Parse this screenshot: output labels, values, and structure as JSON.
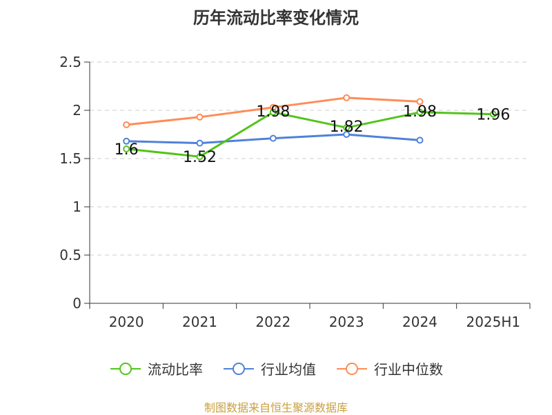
{
  "chart_data": {
    "type": "line",
    "title": "历年流动比率变化情况",
    "categories": [
      "2020",
      "2021",
      "2022",
      "2023",
      "2024",
      "2025H1"
    ],
    "ylim": [
      0,
      2.5
    ],
    "yticks": [
      "0",
      "0.5",
      "1",
      "1.5",
      "2",
      "2.5"
    ],
    "ytick_values": [
      0,
      0.5,
      1,
      1.5,
      2,
      2.5
    ],
    "grid": true,
    "legend_position": "bottom",
    "series": [
      {
        "name": "流动比率",
        "color": "#52c41a",
        "values": [
          1.6,
          1.52,
          1.98,
          1.82,
          1.98,
          1.96
        ],
        "labels": [
          "1.6",
          "1.52",
          "1.98",
          "1.82",
          "1.98",
          "1.96"
        ]
      },
      {
        "name": "行业均值",
        "color": "#4f81d9",
        "values": [
          1.68,
          1.66,
          1.71,
          1.75,
          1.69,
          null
        ]
      },
      {
        "name": "行业中位数",
        "color": "#ff8c55",
        "values": [
          1.85,
          1.93,
          2.03,
          2.13,
          2.09,
          null
        ]
      }
    ]
  },
  "source": "制图数据来自恒生聚源数据库"
}
